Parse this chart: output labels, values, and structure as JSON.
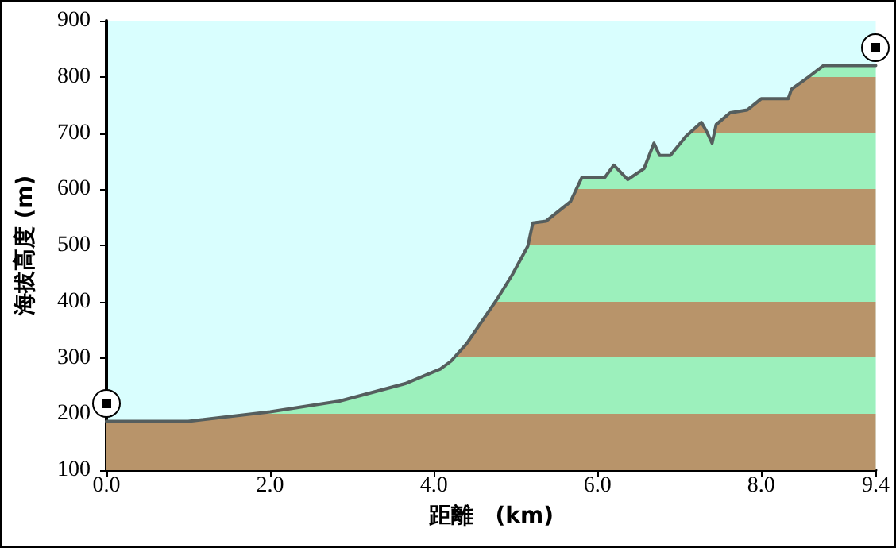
{
  "chart_data": {
    "type": "area",
    "xlabel": "距離　(km)",
    "ylabel": "海拔高度 (m)",
    "x": [
      0,
      1.0,
      2.0,
      2.85,
      3.65,
      4.08,
      4.21,
      4.4,
      4.78,
      4.96,
      5.15,
      5.21,
      5.37,
      5.67,
      5.81,
      6.09,
      6.2,
      6.37,
      6.57,
      6.69,
      6.76,
      6.89,
      7.08,
      7.27,
      7.34,
      7.4,
      7.45,
      7.62,
      7.83,
      8.0,
      8.33,
      8.37,
      8.58,
      8.76,
      9.21,
      9.4
    ],
    "series": [
      {
        "color": "#555e5e",
        "values": [
          187,
          187,
          204,
          223,
          254,
          280,
          294,
          325,
          406,
          448,
          499,
          540,
          543,
          578,
          621,
          621,
          643,
          617,
          637,
          682,
          660,
          660,
          694,
          719,
          701,
          682,
          715,
          736,
          741,
          761,
          761,
          778,
          800,
          820,
          820,
          820
        ]
      }
    ],
    "xlim": [
      0,
      9.4
    ],
    "xticks": [
      {
        "value": 0,
        "label": "0.0"
      },
      {
        "value": 2,
        "label": "2.0"
      },
      {
        "value": 4,
        "label": "4.0"
      },
      {
        "value": 6,
        "label": "6.0"
      },
      {
        "value": 8,
        "label": "8.0"
      },
      9.4
    ],
    "ylim": [
      100,
      900
    ],
    "yticks": [
      100,
      200,
      300,
      400,
      500,
      600,
      700,
      800,
      900
    ],
    "grid": false,
    "marker": "none",
    "line_style": "solid"
  }
}
